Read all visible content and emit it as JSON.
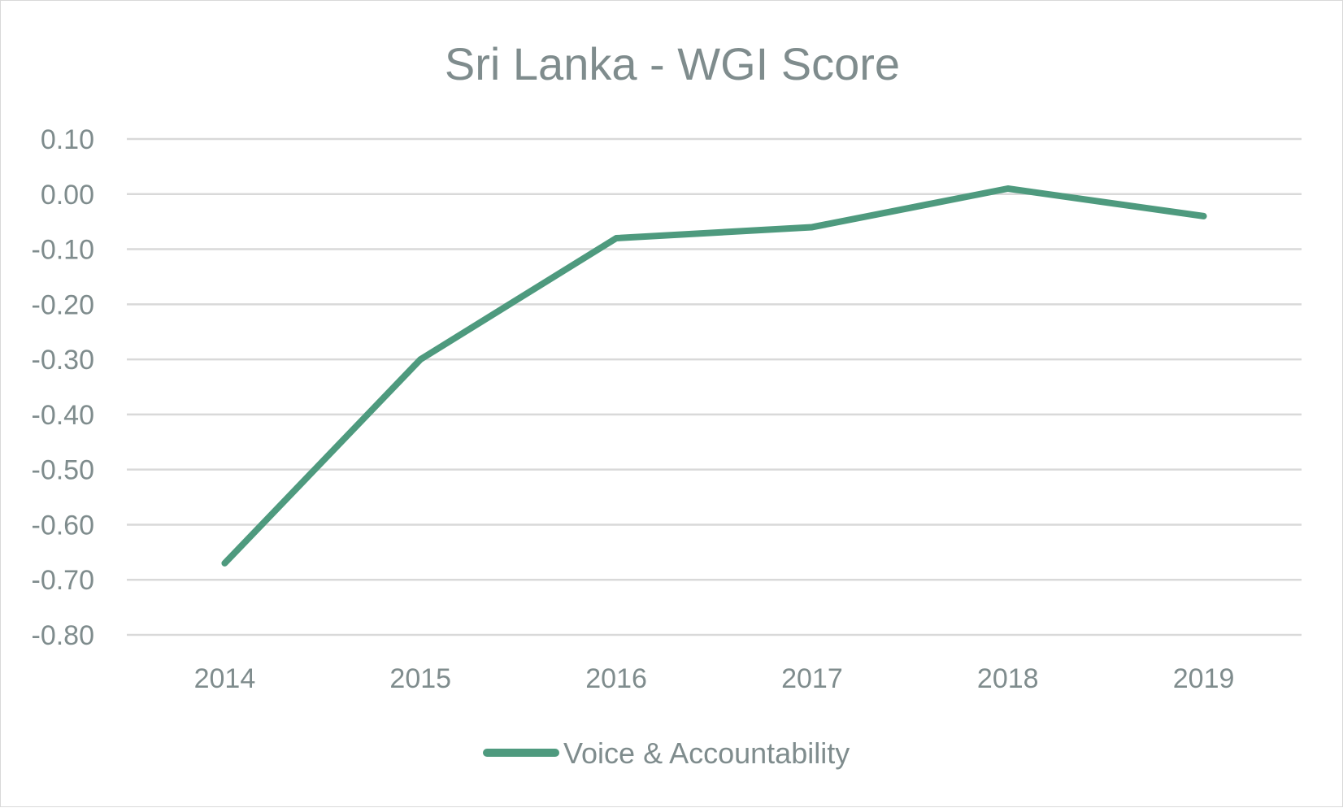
{
  "chart_data": {
    "type": "line",
    "title": "Sri Lanka - WGI Score",
    "xlabel": "",
    "ylabel": "",
    "categories": [
      "2014",
      "2015",
      "2016",
      "2017",
      "2018",
      "2019"
    ],
    "series": [
      {
        "name": "Voice & Accountability",
        "color": "#4e9a7e",
        "values": [
          -0.67,
          -0.3,
          -0.08,
          -0.06,
          0.01,
          -0.04
        ]
      }
    ],
    "ylim": [
      -0.8,
      0.1
    ],
    "y_ticks": [
      "0.10",
      "0.00",
      "-0.10",
      "-0.20",
      "-0.30",
      "-0.40",
      "-0.50",
      "-0.60",
      "-0.70",
      "-0.80"
    ],
    "grid": true,
    "legend_position": "bottom"
  }
}
